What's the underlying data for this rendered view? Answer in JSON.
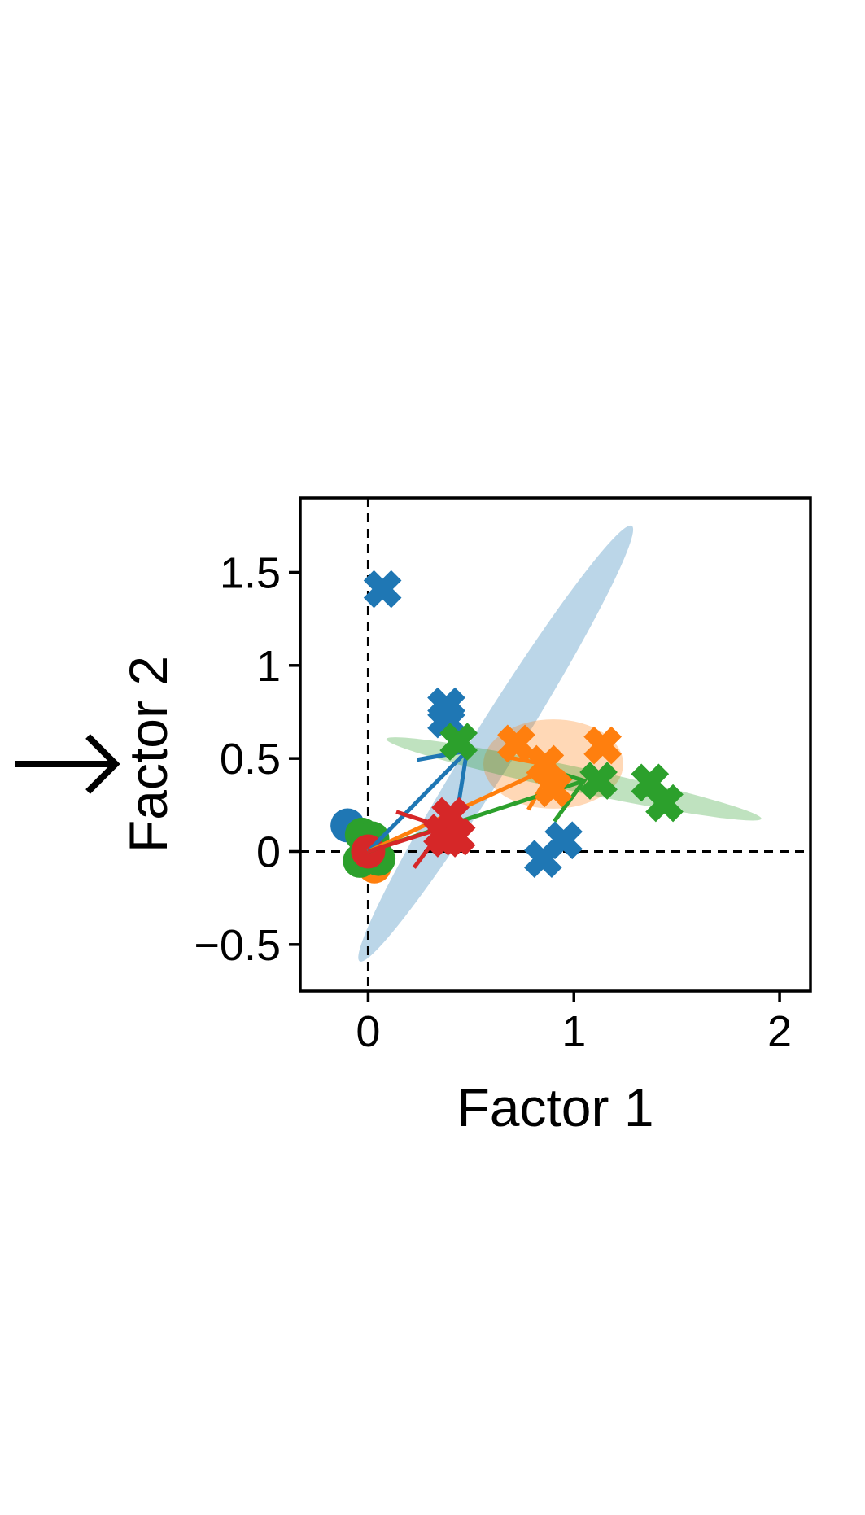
{
  "chart_data": {
    "type": "scatter",
    "title": "",
    "xlabel": "Factor 1",
    "ylabel": "Factor 2",
    "xlim": [
      -0.33,
      2.15
    ],
    "ylim": [
      -0.75,
      1.9
    ],
    "xticks": [
      0,
      1,
      2
    ],
    "xtick_labels": [
      "0",
      "1",
      "2"
    ],
    "yticks": [
      -0.5,
      0,
      0.5,
      1,
      1.5
    ],
    "ytick_labels": [
      "−0.5",
      "0",
      "0.5",
      "1",
      "1.5"
    ],
    "grid": false,
    "legend": "none",
    "reference_lines": [
      {
        "orientation": "vertical",
        "value": 0,
        "style": "dashed",
        "color": "#000000"
      },
      {
        "orientation": "horizontal",
        "value": 0,
        "style": "dashed",
        "color": "#000000"
      }
    ],
    "series": [
      {
        "color": "#1f77b4",
        "origin_points": [
          [
            -0.1,
            0.14
          ],
          [
            0.02,
            0.02
          ]
        ],
        "x_points": [
          [
            0.07,
            1.41
          ],
          [
            0.38,
            0.78
          ],
          [
            0.38,
            0.71
          ],
          [
            0.85,
            -0.04
          ],
          [
            0.95,
            0.06
          ]
        ],
        "arrow": {
          "from": [
            0.0,
            0.0
          ],
          "to": [
            0.48,
            0.54
          ]
        },
        "ellipse": {
          "center": [
            0.62,
            0.58
          ],
          "width_angle_deg": 58,
          "semi_major": 1.38,
          "semi_minor": 0.11,
          "opacity": 0.3
        }
      },
      {
        "color": "#ff7f0e",
        "origin_points": [
          [
            0.03,
            -0.08
          ],
          [
            0.0,
            0.0
          ]
        ],
        "x_points": [
          [
            0.72,
            0.58
          ],
          [
            0.86,
            0.47
          ],
          [
            0.9,
            0.34
          ],
          [
            1.14,
            0.57
          ]
        ],
        "arrow": {
          "from": [
            0.0,
            0.0
          ],
          "to": [
            0.9,
            0.46
          ]
        },
        "ellipse": {
          "center": [
            0.9,
            0.47
          ],
          "width_angle_deg": 0,
          "semi_major": 0.34,
          "semi_minor": 0.24,
          "opacity": 0.3
        }
      },
      {
        "color": "#2ca02c",
        "origin_points": [
          [
            -0.03,
            0.09
          ],
          [
            0.02,
            0.07
          ],
          [
            -0.04,
            -0.05
          ],
          [
            0.05,
            -0.04
          ],
          [
            0.0,
            0.02
          ]
        ],
        "x_points": [
          [
            0.44,
            0.59
          ],
          [
            1.12,
            0.38
          ],
          [
            1.37,
            0.37
          ],
          [
            1.44,
            0.26
          ]
        ],
        "arrow": {
          "from": [
            0.0,
            0.0
          ],
          "to": [
            1.05,
            0.38
          ]
        },
        "ellipse": {
          "center": [
            1.0,
            0.39
          ],
          "width_angle_deg": -12,
          "semi_major": 1.03,
          "semi_minor": 0.06,
          "opacity": 0.3
        }
      },
      {
        "color": "#d62728",
        "origin_points": [
          [
            0.0,
            0.0
          ]
        ],
        "x_points": [
          [
            0.36,
            0.1
          ],
          [
            0.4,
            0.19
          ],
          [
            0.43,
            0.08
          ],
          [
            0.38,
            0.07
          ]
        ],
        "arrow": {
          "from": [
            0.0,
            0.0
          ],
          "to": [
            0.37,
            0.13
          ]
        },
        "ellipse": null
      }
    ]
  },
  "panel_arrow": {
    "direction": "right"
  }
}
